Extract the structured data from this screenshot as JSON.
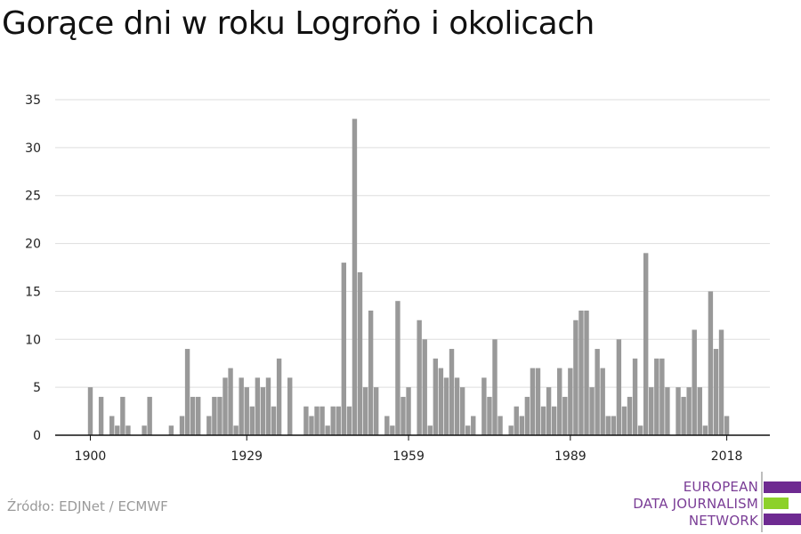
{
  "title": "Gorące dni w roku Logroño i okolicach",
  "source": "Źródło: EDJNet / ECMWF",
  "logo": {
    "lines": [
      "EUROPEAN",
      "DATA JOURNALISM",
      "NETWORK"
    ],
    "colors": {
      "text": "#7a3d96",
      "bar_top": "#6e2a91",
      "bar_mid": "#8dd12a",
      "bar_bottom": "#6e2a91"
    }
  },
  "colors": {
    "bar": "#999999",
    "grid": "#dddddd",
    "axis": "#111111"
  },
  "chart_data": {
    "type": "bar",
    "x": [
      1900,
      1901,
      1902,
      1903,
      1904,
      1905,
      1906,
      1907,
      1908,
      1909,
      1910,
      1911,
      1912,
      1913,
      1914,
      1915,
      1916,
      1917,
      1918,
      1919,
      1920,
      1921,
      1922,
      1923,
      1924,
      1925,
      1926,
      1927,
      1928,
      1929,
      1930,
      1931,
      1932,
      1933,
      1934,
      1935,
      1936,
      1937,
      1938,
      1939,
      1940,
      1941,
      1942,
      1943,
      1944,
      1945,
      1946,
      1947,
      1948,
      1949,
      1950,
      1951,
      1952,
      1953,
      1954,
      1955,
      1956,
      1957,
      1958,
      1959,
      1960,
      1961,
      1962,
      1963,
      1964,
      1965,
      1966,
      1967,
      1968,
      1969,
      1970,
      1971,
      1972,
      1973,
      1974,
      1975,
      1976,
      1977,
      1978,
      1979,
      1980,
      1981,
      1982,
      1983,
      1984,
      1985,
      1986,
      1987,
      1988,
      1989,
      1990,
      1991,
      1992,
      1993,
      1994,
      1995,
      1996,
      1997,
      1998,
      1999,
      2000,
      2001,
      2002,
      2003,
      2004,
      2005,
      2006,
      2007,
      2008,
      2009,
      2010,
      2011,
      2012,
      2013,
      2014,
      2015,
      2016,
      2017,
      2018
    ],
    "values": [
      5,
      0,
      4,
      0,
      2,
      1,
      4,
      1,
      0,
      0,
      1,
      4,
      0,
      0,
      0,
      1,
      0,
      2,
      9,
      4,
      4,
      0,
      2,
      4,
      4,
      6,
      7,
      1,
      6,
      5,
      3,
      6,
      5,
      6,
      3,
      8,
      0,
      6,
      0,
      0,
      3,
      2,
      3,
      3,
      1,
      3,
      3,
      18,
      3,
      33,
      17,
      5,
      13,
      5,
      0,
      2,
      1,
      14,
      4,
      5,
      0,
      12,
      10,
      1,
      8,
      7,
      6,
      9,
      6,
      5,
      1,
      2,
      0,
      6,
      4,
      10,
      2,
      0,
      1,
      3,
      2,
      4,
      7,
      7,
      3,
      5,
      3,
      7,
      4,
      7,
      12,
      13,
      13,
      5,
      9,
      7,
      2,
      2,
      10,
      3,
      4,
      8,
      1,
      19,
      5,
      8,
      8,
      5,
      0,
      5,
      4,
      5,
      11,
      5,
      1,
      15,
      9,
      11,
      2
    ],
    "xticks": [
      1900,
      1929,
      1959,
      1989,
      2018
    ],
    "yticks": [
      0,
      5,
      10,
      15,
      20,
      25,
      30,
      35
    ],
    "ylim": [
      0,
      35
    ],
    "xlabel": "",
    "ylabel": "",
    "grid": true
  }
}
